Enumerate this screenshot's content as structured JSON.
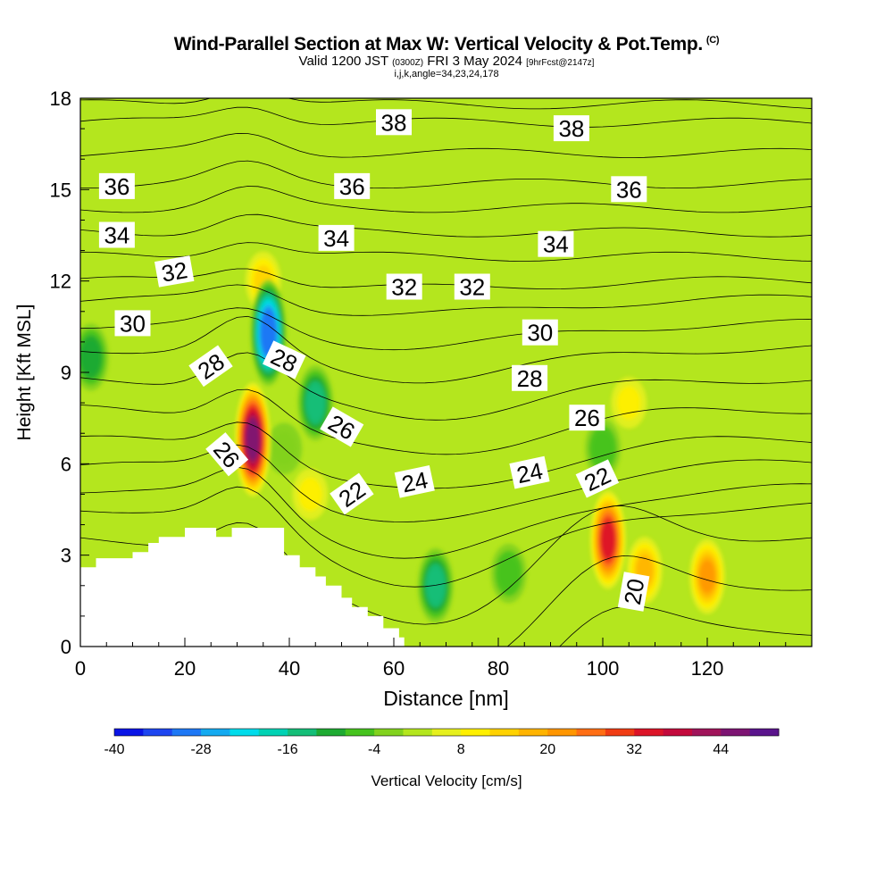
{
  "title": {
    "main": "Wind-Parallel Section at Max W: Vertical Velocity & Pot.Temp.",
    "copyright": "(C)",
    "valid_prefix": "Valid 1200 JST",
    "valid_utc": "(0300Z)",
    "valid_date": "FRI 3 May 2024",
    "forecast": "[9hrFcst@2147z]",
    "indices": "i,j,k,angle=34,23,24,178"
  },
  "chart_data": {
    "type": "heatmap",
    "xlabel": "Distance [nm]",
    "ylabel": "Height [Kft MSL]",
    "xlim": [
      0,
      140
    ],
    "ylim": [
      0,
      18
    ],
    "x_ticks": [
      0,
      20,
      40,
      60,
      80,
      100,
      120
    ],
    "y_ticks": [
      0,
      3,
      6,
      9,
      12,
      15,
      18
    ],
    "colorbar": {
      "label": "Vertical Velocity [cm/s]",
      "min": -40,
      "max": 52,
      "step": 4,
      "tick_values": [
        -40,
        -28,
        -16,
        -4,
        8,
        20,
        32,
        44
      ],
      "colors": [
        "#0a14e6",
        "#1e46f0",
        "#1e78f5",
        "#14aaf0",
        "#00dceb",
        "#00d2b4",
        "#14be78",
        "#1eaa32",
        "#46c31e",
        "#82d21e",
        "#b4e61e",
        "#e6f01e",
        "#fff000",
        "#ffd200",
        "#ffb400",
        "#ff9600",
        "#ff6e14",
        "#f03c14",
        "#dc1428",
        "#c30a3c",
        "#a0145a",
        "#7d1473",
        "#5a148c"
      ]
    },
    "terrain": [
      [
        0,
        2.6
      ],
      [
        3,
        2.6
      ],
      [
        3,
        2.9
      ],
      [
        10,
        2.9
      ],
      [
        10,
        3.1
      ],
      [
        13,
        3.1
      ],
      [
        13,
        3.4
      ],
      [
        15,
        3.4
      ],
      [
        15,
        3.6
      ],
      [
        20,
        3.6
      ],
      [
        20,
        3.9
      ],
      [
        26,
        3.9
      ],
      [
        26,
        3.6
      ],
      [
        29,
        3.6
      ],
      [
        29,
        3.9
      ],
      [
        39,
        3.9
      ],
      [
        39,
        3.0
      ],
      [
        42,
        3.0
      ],
      [
        42,
        2.6
      ],
      [
        45,
        2.6
      ],
      [
        45,
        2.3
      ],
      [
        47,
        2.3
      ],
      [
        47,
        2.0
      ],
      [
        50,
        2.0
      ],
      [
        50,
        1.6
      ],
      [
        52,
        1.6
      ],
      [
        52,
        1.3
      ],
      [
        55,
        1.3
      ],
      [
        55,
        1.0
      ],
      [
        58,
        1.0
      ],
      [
        58,
        0.6
      ],
      [
        61,
        0.6
      ],
      [
        61,
        0.3
      ],
      [
        62,
        0.3
      ],
      [
        62,
        0
      ]
    ],
    "features": [
      {
        "x": 33,
        "y": 6.8,
        "value": 44
      },
      {
        "x": 36,
        "y": 10.3,
        "value": -36
      },
      {
        "x": 35,
        "y": 12.0,
        "value": 12
      },
      {
        "x": 45,
        "y": 8.0,
        "value": -20
      },
      {
        "x": 39,
        "y": 6.5,
        "value": -8
      },
      {
        "x": 44,
        "y": 5.0,
        "value": 8
      },
      {
        "x": 68,
        "y": 2.0,
        "value": -20
      },
      {
        "x": 82,
        "y": 2.4,
        "value": -12
      },
      {
        "x": 101,
        "y": 3.5,
        "value": 32
      },
      {
        "x": 108,
        "y": 2.5,
        "value": 16
      },
      {
        "x": 120,
        "y": 2.3,
        "value": 20
      },
      {
        "x": 2,
        "y": 9.5,
        "value": -16
      },
      {
        "x": 105,
        "y": 8.0,
        "value": 8
      },
      {
        "x": 100,
        "y": 6.5,
        "value": -12
      }
    ],
    "isentropes": [
      {
        "theta": 20,
        "label_x": 106,
        "label_y": 1.8,
        "label_angle": -80
      },
      {
        "theta": 22,
        "label_x": 52,
        "label_y": 5.0,
        "label_angle": -35
      },
      {
        "theta": 22,
        "label_x": 99,
        "label_y": 5.5,
        "label_angle": -25
      },
      {
        "theta": 24,
        "label_x": 64,
        "label_y": 5.4,
        "label_angle": -12
      },
      {
        "theta": 24,
        "label_x": 86,
        "label_y": 5.7,
        "label_angle": -12
      },
      {
        "theta": 26,
        "label_x": 28,
        "label_y": 6.3,
        "label_angle": 50
      },
      {
        "theta": 26,
        "label_x": 50,
        "label_y": 7.2,
        "label_angle": 30
      },
      {
        "theta": 26,
        "label_x": 97,
        "label_y": 7.5,
        "label_angle": 0
      },
      {
        "theta": 28,
        "label_x": 25,
        "label_y": 9.2,
        "label_angle": -35
      },
      {
        "theta": 28,
        "label_x": 39,
        "label_y": 9.4,
        "label_angle": 25
      },
      {
        "theta": 28,
        "label_x": 86,
        "label_y": 8.8,
        "label_angle": 0
      },
      {
        "theta": 30,
        "label_x": 10,
        "label_y": 10.6,
        "label_angle": 0
      },
      {
        "theta": 30,
        "label_x": 88,
        "label_y": 10.3,
        "label_angle": 0
      },
      {
        "theta": 32,
        "label_x": 18,
        "label_y": 12.3,
        "label_angle": -10
      },
      {
        "theta": 32,
        "label_x": 62,
        "label_y": 11.8,
        "label_angle": 0
      },
      {
        "theta": 32,
        "label_x": 75,
        "label_y": 11.8,
        "label_angle": 0
      },
      {
        "theta": 34,
        "label_x": 7,
        "label_y": 13.5,
        "label_angle": 0
      },
      {
        "theta": 34,
        "label_x": 49,
        "label_y": 13.4,
        "label_angle": 0
      },
      {
        "theta": 34,
        "label_x": 91,
        "label_y": 13.2,
        "label_angle": 0
      },
      {
        "theta": 36,
        "label_x": 7,
        "label_y": 15.1,
        "label_angle": 0
      },
      {
        "theta": 36,
        "label_x": 52,
        "label_y": 15.1,
        "label_angle": 0
      },
      {
        "theta": 36,
        "label_x": 105,
        "label_y": 15.0,
        "label_angle": 0
      },
      {
        "theta": 38,
        "label_x": 60,
        "label_y": 17.2,
        "label_angle": 0
      },
      {
        "theta": 38,
        "label_x": 94,
        "label_y": 17.0,
        "label_angle": 0
      }
    ]
  }
}
